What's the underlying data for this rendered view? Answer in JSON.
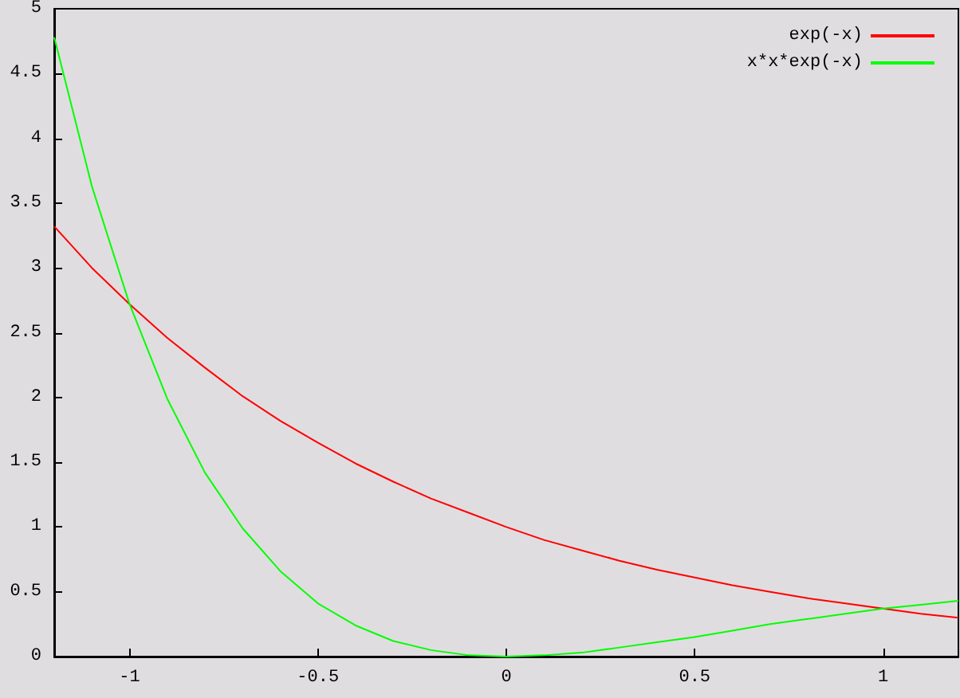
{
  "chart_data": {
    "type": "line",
    "x": [
      -1.2,
      -1.1,
      -1,
      -0.9,
      -0.8,
      -0.7,
      -0.6,
      -0.5,
      -0.4,
      -0.3,
      -0.2,
      -0.1,
      0,
      0.1,
      0.2,
      0.3,
      0.4,
      0.5,
      0.6,
      0.7,
      0.8,
      0.9,
      1,
      1.1,
      1.2
    ],
    "series": [
      {
        "name": "exp(-x)",
        "color": "#ff0000",
        "values": [
          3.32,
          3.0,
          2.72,
          2.46,
          2.23,
          2.01,
          1.82,
          1.65,
          1.49,
          1.35,
          1.22,
          1.11,
          1.0,
          0.9,
          0.82,
          0.74,
          0.67,
          0.61,
          0.55,
          0.5,
          0.45,
          0.41,
          0.37,
          0.33,
          0.3
        ]
      },
      {
        "name": "x*x*exp(-x)",
        "color": "#00ff00",
        "values": [
          4.78,
          3.63,
          2.72,
          1.99,
          1.42,
          0.99,
          0.66,
          0.41,
          0.24,
          0.12,
          0.05,
          0.01,
          0,
          0.01,
          0.03,
          0.07,
          0.11,
          0.15,
          0.2,
          0.25,
          0.29,
          0.33,
          0.37,
          0.4,
          0.43
        ]
      }
    ],
    "xlim": [
      -1.2,
      1.2
    ],
    "xticks": [
      -1,
      -0.5,
      0,
      0.5,
      1
    ],
    "ylim": [
      0,
      5
    ],
    "yticks": [
      0,
      0.5,
      1,
      1.5,
      2,
      2.5,
      3,
      3.5,
      4,
      4.5,
      5
    ],
    "grid": false,
    "legend": "top right",
    "marker": "none",
    "line_style": "solid"
  }
}
